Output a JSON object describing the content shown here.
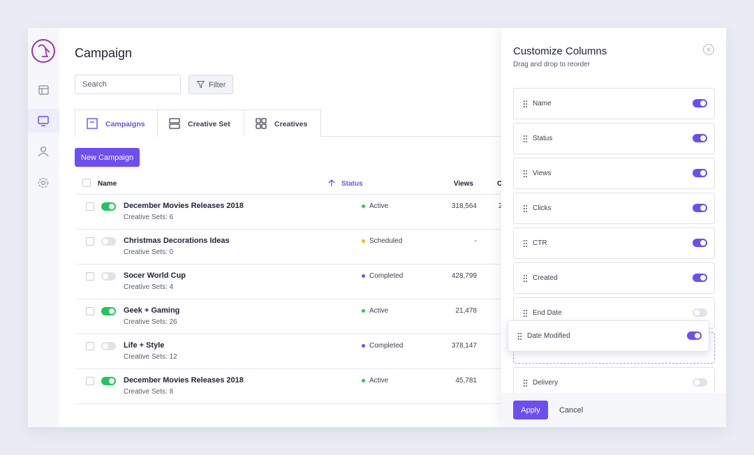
{
  "header": {
    "title": "Campaign"
  },
  "toolbar": {
    "search_placeholder": "Search",
    "filter": "Filter"
  },
  "tabs": [
    "Campaigns",
    "Creative Set",
    "Creatives"
  ],
  "new_button": "New Campaign",
  "table": {
    "columns": [
      "Name",
      "Status",
      "Views",
      "C"
    ],
    "rows": [
      {
        "name": "December Movies Releases 2018",
        "sets": "Creative Sets: 6",
        "status": "Active",
        "status_color": "#22c55e",
        "views": "318,564",
        "extra": "2",
        "enabled": true
      },
      {
        "name": "Christmas Decorations Ideas",
        "sets": "Creative Sets: 0",
        "status": "Scheduled",
        "status_color": "#f5b800",
        "views": "-",
        "enabled": false
      },
      {
        "name": "Socer World Cup",
        "sets": "Creative Sets: 4",
        "status": "Completed",
        "status_color": "#6c4ef5",
        "views": "428,799",
        "enabled": false
      },
      {
        "name": "Geek + Gaming",
        "sets": "Creative Sets: 26",
        "status": "Active",
        "status_color": "#22c55e",
        "views": "21,478",
        "enabled": true
      },
      {
        "name": "Life + Style",
        "sets": "Creative Sets: 12",
        "status": "Completed",
        "status_color": "#6c4ef5",
        "views": "378,147",
        "enabled": false
      },
      {
        "name": "December Movies Releases 2018",
        "sets": "Creative Sets: 8",
        "status": "Active",
        "status_color": "#22c55e",
        "views": "45,781",
        "enabled": true
      }
    ]
  },
  "panel": {
    "title": "Customize Columns",
    "subtitle": "Drag and drop to reorder",
    "columns": [
      {
        "name": "Name",
        "on": true
      },
      {
        "name": "Status",
        "on": true
      },
      {
        "name": "Views",
        "on": true
      },
      {
        "name": "Clicks",
        "on": true
      },
      {
        "name": "CTR",
        "on": true
      },
      {
        "name": "Created",
        "on": true
      },
      {
        "name": "End Date",
        "on": false
      }
    ],
    "dragged_column": {
      "name": "Date Modified",
      "on": true
    },
    "more_columns": [
      {
        "name": "Delivery",
        "on": false
      }
    ],
    "apply": "Apply",
    "cancel": "Cancel"
  }
}
